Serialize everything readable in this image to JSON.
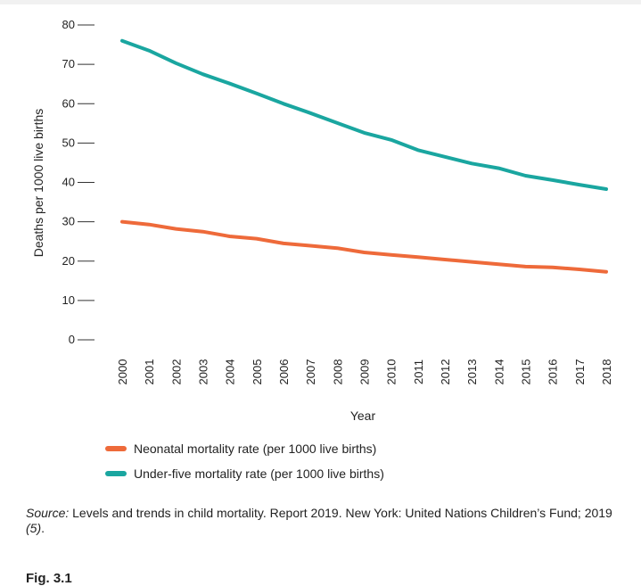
{
  "chart_data": {
    "type": "line",
    "title": "",
    "xlabel": "Year",
    "ylabel": "Deaths per 1000 live births",
    "x": [
      "2000",
      "2001",
      "2002",
      "2003",
      "2004",
      "2005",
      "2006",
      "2007",
      "2008",
      "2009",
      "2010",
      "2011",
      "2012",
      "2013",
      "2014",
      "2015",
      "2016",
      "2017",
      "2018"
    ],
    "yticks": [
      "0",
      "10",
      "20",
      "30",
      "40",
      "50",
      "60",
      "70",
      "80"
    ],
    "ylim": [
      0,
      80
    ],
    "grid": false,
    "legend_position": "bottom-left",
    "series": [
      {
        "name": "Neonatal mortality rate (per 1000 live births)",
        "color": "#ee6a3a",
        "values": [
          30.0,
          29.3,
          28.2,
          27.5,
          26.3,
          25.7,
          24.5,
          23.9,
          23.3,
          22.2,
          21.6,
          21.0,
          20.4,
          19.8,
          19.2,
          18.6,
          18.4,
          17.9,
          17.3
        ]
      },
      {
        "name": "Under-five mortality rate (per 1000 live births)",
        "color": "#1aa6a0",
        "values": [
          76.0,
          73.5,
          70.3,
          67.5,
          65.1,
          62.6,
          60.0,
          57.6,
          55.1,
          52.6,
          50.8,
          48.2,
          46.5,
          44.8,
          43.6,
          41.7,
          40.6,
          39.4,
          38.3
        ]
      }
    ]
  },
  "source": {
    "label": "Source:",
    "text": " Levels and trends in child mortality. Report 2019. New York: United Nations Children’s Fund; 2019 ",
    "ref": "(5)",
    "end": "."
  },
  "next_figure_label": "Fig. 3.1"
}
